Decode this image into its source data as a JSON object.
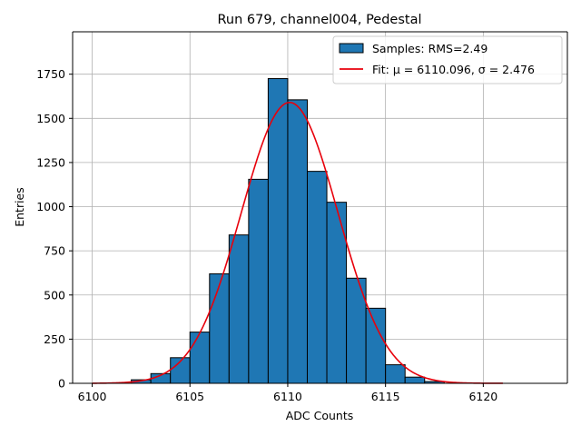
{
  "chart_data": {
    "type": "bar",
    "title": "Run 679, channel004, Pedestal",
    "xlabel": "ADC Counts",
    "ylabel": "Entries",
    "xlim": [
      6099.0,
      6124.3
    ],
    "ylim": [
      0,
      1990
    ],
    "xticks": [
      6100,
      6105,
      6110,
      6115,
      6120
    ],
    "yticks": [
      0,
      250,
      500,
      750,
      1000,
      1250,
      1500,
      1750
    ],
    "grid": true,
    "legend_position": "top-right",
    "histogram": {
      "name": "Samples: RMS=2.49",
      "bin_width": 1,
      "bin_left_edges": [
        6102,
        6103,
        6104,
        6105,
        6106,
        6107,
        6108,
        6109,
        6110,
        6111,
        6112,
        6113,
        6114,
        6115,
        6116,
        6117
      ],
      "values": [
        20,
        55,
        145,
        290,
        620,
        840,
        1155,
        1725,
        1605,
        1200,
        1025,
        595,
        425,
        105,
        35,
        10
      ],
      "color": "#1f77b4",
      "edge_color": "#000000"
    },
    "fit": {
      "name": "Fit: μ = 6110.096, σ = 2.476",
      "mu": 6110.096,
      "sigma": 2.476,
      "amplitude": 1590,
      "x_range": [
        6100,
        6121
      ],
      "color": "#e8000b"
    }
  }
}
